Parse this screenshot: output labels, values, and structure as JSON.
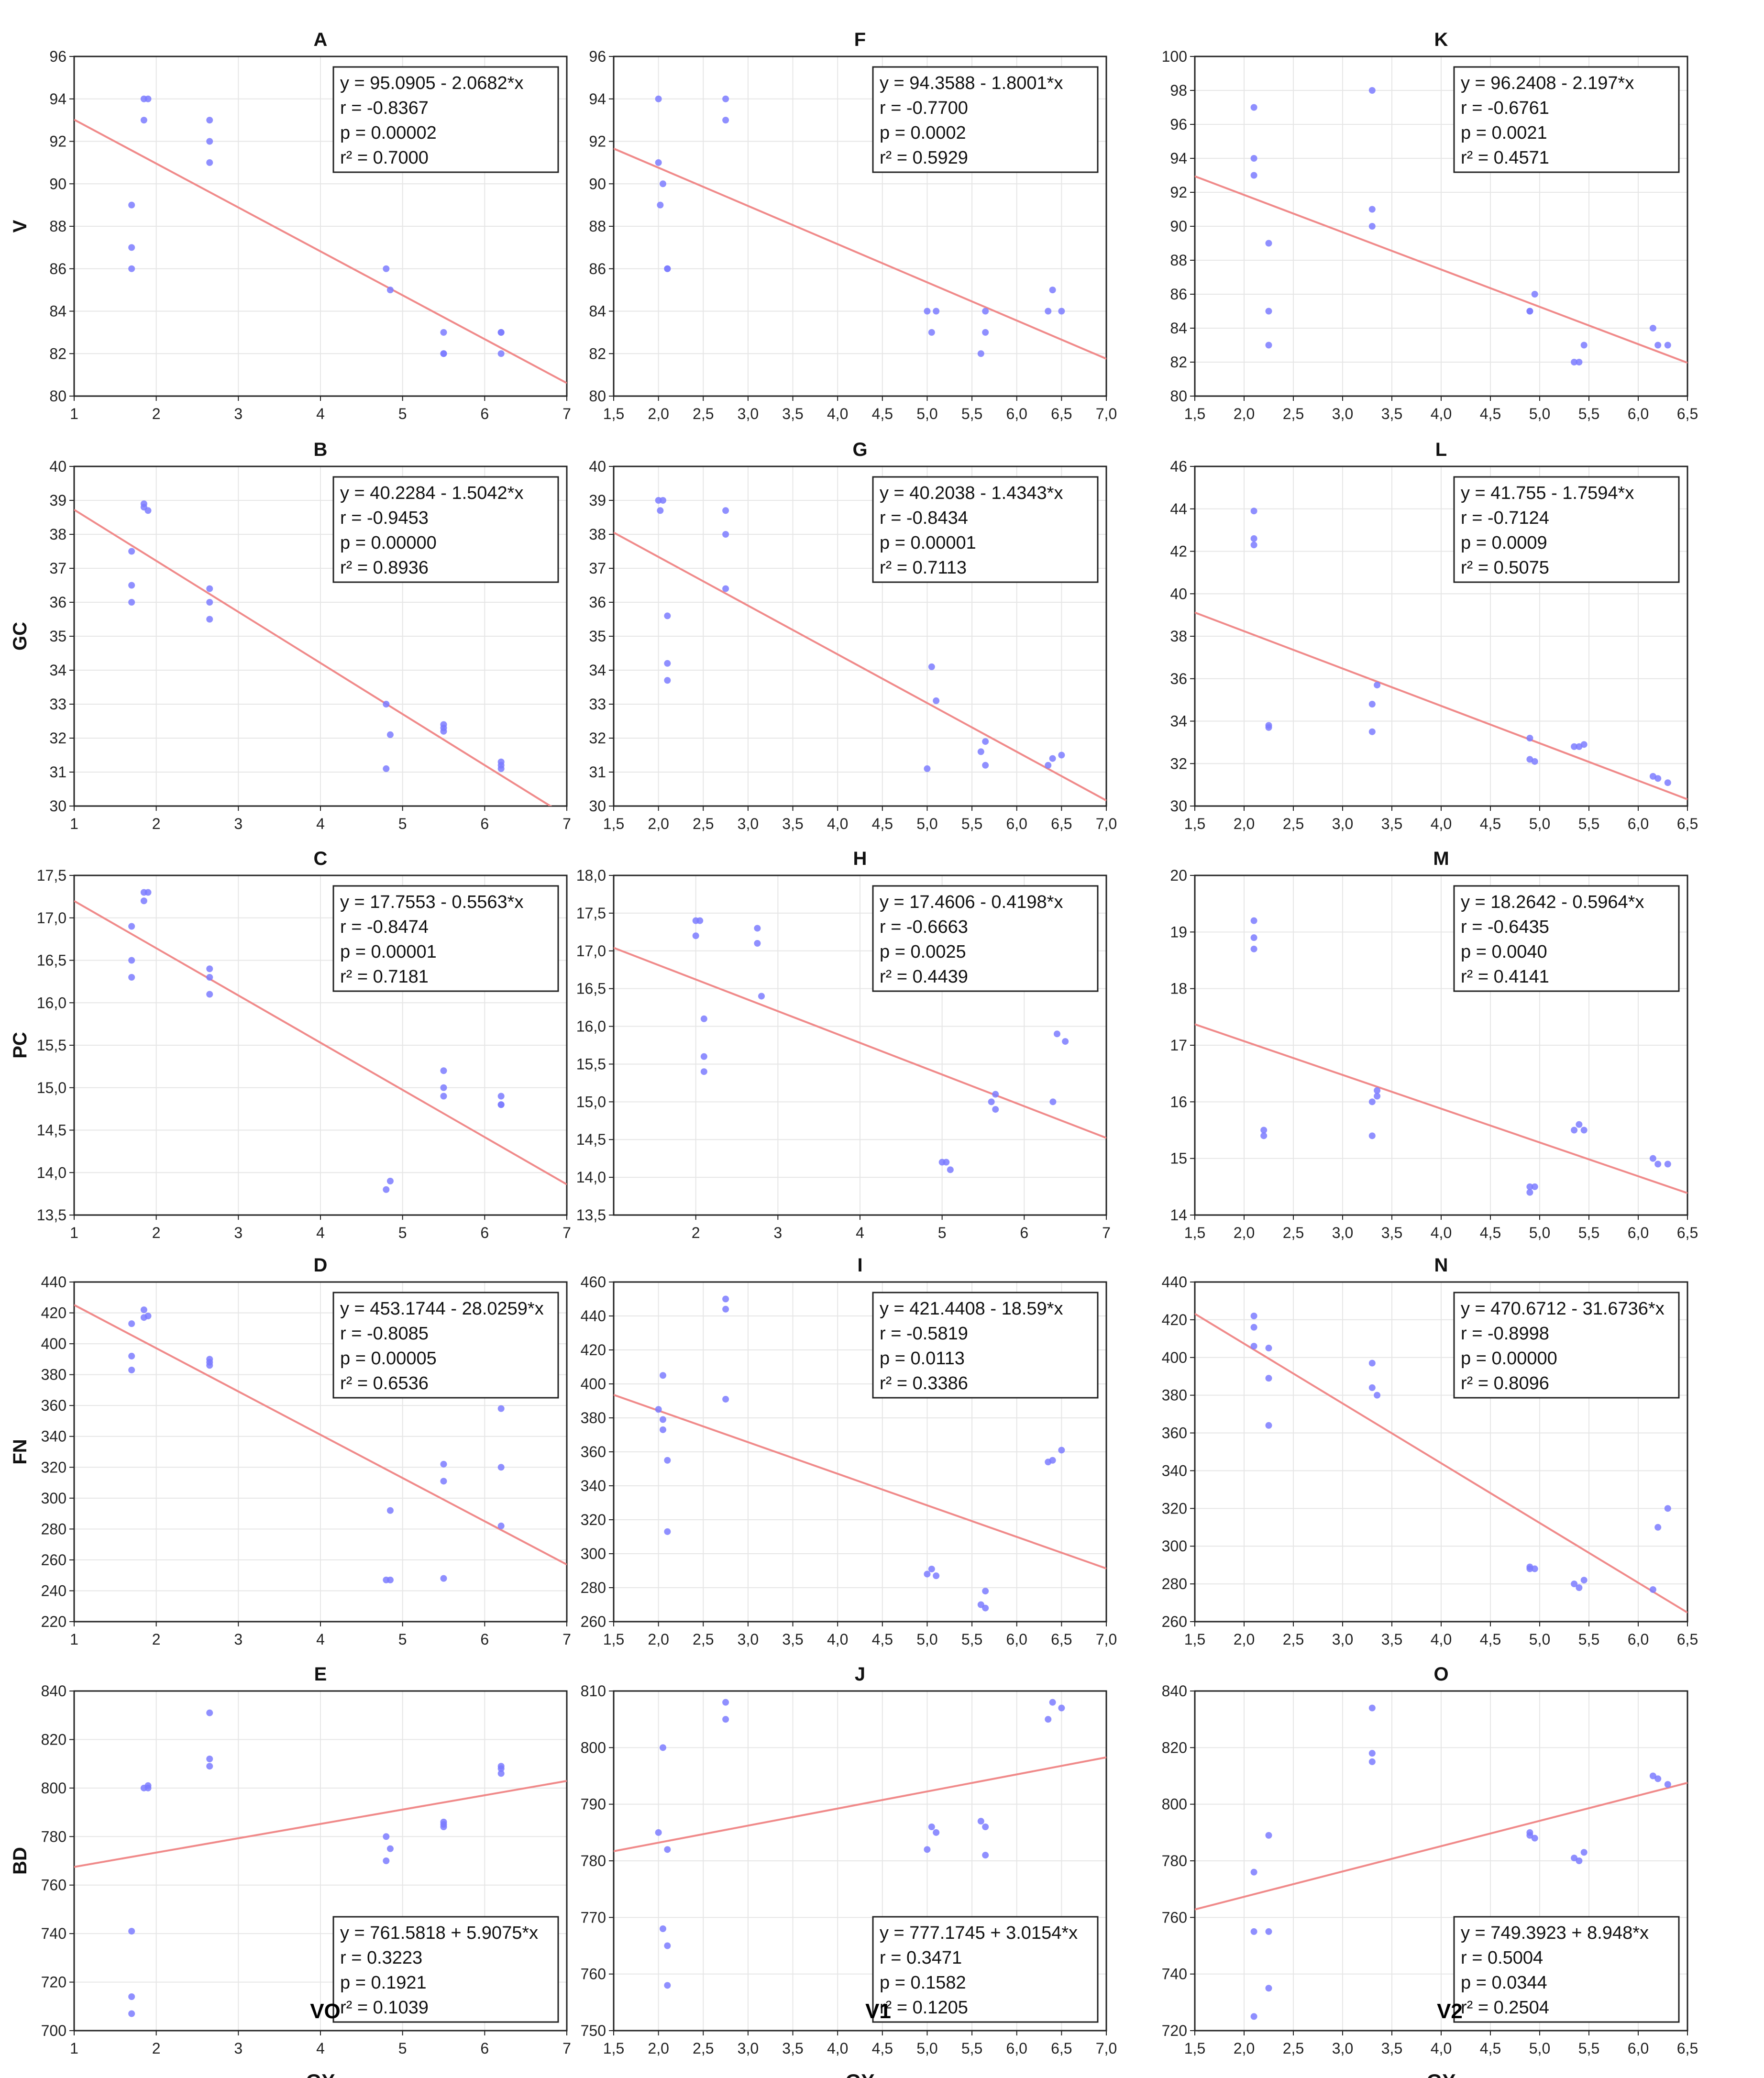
{
  "figure": {
    "column_xlabels": [
      "GY",
      "GY",
      "GY"
    ],
    "column_group_labels": [
      "VO",
      "V1",
      "V2"
    ],
    "row_ylabels": [
      "V",
      "GC",
      "PC",
      "FN",
      "BD"
    ]
  },
  "colors": {
    "points": "#7b7bff",
    "line": "#f08a8a",
    "grid": "#e6e6e6",
    "frame": "#222222"
  },
  "chart_data": [
    {
      "id": "A",
      "type": "scatter",
      "title": "A",
      "ylabel": "V",
      "xlabel": "GY",
      "xlim": [
        1,
        7
      ],
      "ylim": [
        80,
        96
      ],
      "xticks": [
        "1",
        "2",
        "3",
        "4",
        "5",
        "6",
        "7"
      ],
      "yticks": [
        "80",
        "82",
        "84",
        "86",
        "88",
        "90",
        "92",
        "94",
        "96"
      ],
      "x": [
        1.7,
        1.7,
        1.7,
        1.85,
        1.85,
        1.9,
        2.65,
        2.65,
        2.65,
        4.8,
        4.85,
        5.5,
        5.5,
        5.5,
        6.2,
        6.2,
        6.2
      ],
      "y": [
        89,
        87,
        86,
        94,
        93,
        94,
        93,
        92,
        91,
        86,
        85,
        83,
        82,
        82,
        83,
        82,
        83
      ],
      "fit": {
        "intercept": 95.0905,
        "slope": -2.0682
      },
      "stats": [
        "y = 95.0905 - 2.0682*x",
        "r = -0.8367",
        "p = 0.00002",
        "r² = 0.7000"
      ],
      "stats_pos": "top-right"
    },
    {
      "id": "F",
      "type": "scatter",
      "title": "F",
      "ylabel": "",
      "xlabel": "GY",
      "xlim": [
        1.5,
        7.0
      ],
      "ylim": [
        80,
        96
      ],
      "xticks": [
        "1,5",
        "2,0",
        "2,5",
        "3,0",
        "3,5",
        "4,0",
        "4,5",
        "5,0",
        "5,5",
        "6,0",
        "6,5",
        "7,0"
      ],
      "yticks": [
        "80",
        "82",
        "84",
        "86",
        "88",
        "90",
        "92",
        "94",
        "96"
      ],
      "x": [
        2.0,
        2.0,
        2.02,
        2.05,
        2.1,
        2.1,
        2.75,
        2.75,
        5.0,
        5.05,
        5.1,
        5.6,
        5.65,
        5.65,
        6.35,
        6.4,
        6.5
      ],
      "y": [
        94,
        91,
        89,
        90,
        86,
        86,
        94,
        93,
        84,
        83,
        84,
        82,
        84,
        83,
        84,
        85,
        84
      ],
      "fit": {
        "intercept": 94.3588,
        "slope": -1.8001
      },
      "stats": [
        "y = 94.3588 - 1.8001*x",
        "r = -0.7700",
        "p = 0.0002",
        "r² = 0.5929"
      ],
      "stats_pos": "top-right"
    },
    {
      "id": "K",
      "type": "scatter",
      "title": "K",
      "ylabel": "",
      "xlabel": "GY",
      "xlim": [
        1.5,
        6.5
      ],
      "ylim": [
        80,
        100
      ],
      "xticks": [
        "1,5",
        "2,0",
        "2,5",
        "3,0",
        "3,5",
        "4,0",
        "4,5",
        "5,0",
        "5,5",
        "6,0",
        "6,5"
      ],
      "yticks": [
        "80",
        "82",
        "84",
        "86",
        "88",
        "90",
        "92",
        "94",
        "96",
        "98",
        "100"
      ],
      "x": [
        2.1,
        2.1,
        2.1,
        2.25,
        2.25,
        2.25,
        3.3,
        3.3,
        3.3,
        4.9,
        4.9,
        4.95,
        5.35,
        5.4,
        5.45,
        6.15,
        6.2,
        6.3
      ],
      "y": [
        97,
        94,
        93,
        89,
        85,
        83,
        98,
        91,
        90,
        85,
        85,
        86,
        82,
        82,
        83,
        84,
        83,
        83
      ],
      "fit": {
        "intercept": 96.2408,
        "slope": -2.197
      },
      "stats": [
        "y = 96.2408 - 2.197*x",
        "r = -0.6761",
        "p = 0.0021",
        "r² = 0.4571"
      ],
      "stats_pos": "top-right"
    },
    {
      "id": "B",
      "type": "scatter",
      "title": "B",
      "ylabel": "GC",
      "xlabel": "GY",
      "xlim": [
        1,
        7
      ],
      "ylim": [
        30,
        40
      ],
      "xticks": [
        "1",
        "2",
        "3",
        "4",
        "5",
        "6",
        "7"
      ],
      "yticks": [
        "30",
        "31",
        "32",
        "33",
        "34",
        "35",
        "36",
        "37",
        "38",
        "39",
        "40"
      ],
      "x": [
        1.7,
        1.7,
        1.7,
        1.85,
        1.85,
        1.9,
        2.65,
        2.65,
        2.65,
        4.8,
        4.85,
        4.8,
        5.5,
        5.5,
        5.5,
        6.2,
        6.2,
        6.2
      ],
      "y": [
        37.5,
        36.5,
        36.0,
        38.9,
        38.8,
        38.7,
        36.4,
        36.0,
        35.5,
        33.0,
        32.1,
        31.1,
        32.4,
        32.3,
        32.2,
        31.3,
        31.2,
        31.1
      ],
      "fit": {
        "intercept": 40.2284,
        "slope": -1.5042
      },
      "stats": [
        "y = 40.2284 - 1.5042*x",
        "r = -0.9453",
        "p = 0.00000",
        "r² = 0.8936"
      ],
      "stats_pos": "top-right"
    },
    {
      "id": "G",
      "type": "scatter",
      "title": "G",
      "ylabel": "",
      "xlabel": "GY",
      "xlim": [
        1.5,
        7.0
      ],
      "ylim": [
        30,
        40
      ],
      "xticks": [
        "1,5",
        "2,0",
        "2,5",
        "3,0",
        "3,5",
        "4,0",
        "4,5",
        "5,0",
        "5,5",
        "6,0",
        "6,5",
        "7,0"
      ],
      "yticks": [
        "30",
        "31",
        "32",
        "33",
        "34",
        "35",
        "36",
        "37",
        "38",
        "39",
        "40"
      ],
      "x": [
        2.0,
        2.05,
        2.02,
        2.1,
        2.1,
        2.1,
        2.75,
        2.75,
        2.75,
        5.0,
        5.05,
        5.1,
        5.6,
        5.65,
        5.65,
        6.35,
        6.4,
        6.5
      ],
      "y": [
        39.0,
        39.0,
        38.7,
        35.6,
        34.2,
        33.7,
        38.7,
        38.0,
        36.4,
        31.1,
        34.1,
        33.1,
        31.6,
        31.9,
        31.2,
        31.2,
        31.4,
        31.5
      ],
      "fit": {
        "intercept": 40.2038,
        "slope": -1.4343
      },
      "stats": [
        "y = 40.2038 - 1.4343*x",
        "r = -0.8434",
        "p = 0.00001",
        "r² = 0.7113"
      ],
      "stats_pos": "top-right"
    },
    {
      "id": "L",
      "type": "scatter",
      "title": "L",
      "ylabel": "",
      "xlabel": "GY",
      "xlim": [
        1.5,
        6.5
      ],
      "ylim": [
        30,
        46
      ],
      "xticks": [
        "1,5",
        "2,0",
        "2,5",
        "3,0",
        "3,5",
        "4,0",
        "4,5",
        "5,0",
        "5,5",
        "6,0",
        "6,5"
      ],
      "yticks": [
        "30",
        "32",
        "34",
        "36",
        "38",
        "40",
        "42",
        "44",
        "46"
      ],
      "x": [
        2.1,
        2.1,
        2.1,
        2.25,
        2.25,
        3.3,
        3.3,
        3.35,
        4.9,
        4.9,
        4.95,
        5.35,
        5.4,
        5.45,
        6.15,
        6.2,
        6.3
      ],
      "y": [
        43.9,
        42.6,
        42.3,
        33.8,
        33.7,
        34.8,
        33.5,
        35.7,
        33.2,
        32.2,
        32.1,
        32.8,
        32.8,
        32.9,
        31.4,
        31.3,
        31.1
      ],
      "fit": {
        "intercept": 41.755,
        "slope": -1.7594
      },
      "stats": [
        "y = 41.755 - 1.7594*x",
        "r = -0.7124",
        "p = 0.0009",
        "r² = 0.5075"
      ],
      "stats_pos": "top-right"
    },
    {
      "id": "C",
      "type": "scatter",
      "title": "C",
      "ylabel": "PC",
      "xlabel": "GY",
      "xlim": [
        1,
        7
      ],
      "ylim": [
        13.5,
        17.5
      ],
      "xticks": [
        "1",
        "2",
        "3",
        "4",
        "5",
        "6",
        "7"
      ],
      "yticks": [
        "13,5",
        "14,0",
        "14,5",
        "15,0",
        "15,5",
        "16,0",
        "16,5",
        "17,0",
        "17,5"
      ],
      "x": [
        1.7,
        1.7,
        1.7,
        1.85,
        1.85,
        1.9,
        2.65,
        2.65,
        2.65,
        4.8,
        4.85,
        5.5,
        5.5,
        5.5,
        6.2,
        6.2,
        6.2
      ],
      "y": [
        16.9,
        16.5,
        16.3,
        17.3,
        17.2,
        17.3,
        16.4,
        16.3,
        16.1,
        13.8,
        13.9,
        15.2,
        15.0,
        14.9,
        14.9,
        14.8,
        14.8
      ],
      "fit": {
        "intercept": 17.7553,
        "slope": -0.5563
      },
      "stats": [
        "y = 17.7553 - 0.5563*x",
        "r = -0.8474",
        "p = 0.00001",
        "r² = 0.7181"
      ],
      "stats_pos": "top-right"
    },
    {
      "id": "H",
      "type": "scatter",
      "title": "H",
      "ylabel": "",
      "xlabel": "GY",
      "xlim": [
        1,
        7
      ],
      "ylim": [
        13.5,
        18.0
      ],
      "xticks": [
        "2",
        "3",
        "4",
        "5",
        "6",
        "7"
      ],
      "yticks": [
        "13,5",
        "14,0",
        "14,5",
        "15,0",
        "15,5",
        "16,0",
        "16,5",
        "17,0",
        "17,5",
        "18,0"
      ],
      "x": [
        2.0,
        2.05,
        2.0,
        2.1,
        2.1,
        2.1,
        2.75,
        2.75,
        2.8,
        5.0,
        5.05,
        5.1,
        5.6,
        5.65,
        5.65,
        6.35,
        6.4,
        6.5
      ],
      "y": [
        17.4,
        17.4,
        17.2,
        16.1,
        15.6,
        15.4,
        17.3,
        17.1,
        16.4,
        14.2,
        14.2,
        14.1,
        15.0,
        15.1,
        14.9,
        15.0,
        15.9,
        15.8
      ],
      "fit": {
        "intercept": 17.4606,
        "slope": -0.4198
      },
      "stats": [
        "y = 17.4606 - 0.4198*x",
        "r = -0.6663",
        "p = 0.0025",
        "r² = 0.4439"
      ],
      "stats_pos": "top-right"
    },
    {
      "id": "M",
      "type": "scatter",
      "title": "M",
      "ylabel": "",
      "xlabel": "GY",
      "xlim": [
        1.5,
        6.5
      ],
      "ylim": [
        14,
        20
      ],
      "xticks": [
        "1,5",
        "2,0",
        "2,5",
        "3,0",
        "3,5",
        "4,0",
        "4,5",
        "5,0",
        "5,5",
        "6,0",
        "6,5"
      ],
      "yticks": [
        "14",
        "15",
        "16",
        "17",
        "18",
        "19",
        "20"
      ],
      "x": [
        2.1,
        2.1,
        2.1,
        2.2,
        2.2,
        3.3,
        3.3,
        3.35,
        3.35,
        4.9,
        4.9,
        4.95,
        5.35,
        5.4,
        5.45,
        6.15,
        6.2,
        6.3
      ],
      "y": [
        19.2,
        18.9,
        18.7,
        15.5,
        15.4,
        16.0,
        15.4,
        16.2,
        16.1,
        14.4,
        14.5,
        14.5,
        15.5,
        15.6,
        15.5,
        15.0,
        14.9,
        14.9
      ],
      "fit": {
        "intercept": 18.2642,
        "slope": -0.5964
      },
      "stats": [
        "y = 18.2642 - 0.5964*x",
        "r = -0.6435",
        "p = 0.0040",
        "r² = 0.4141"
      ],
      "stats_pos": "top-right"
    },
    {
      "id": "D",
      "type": "scatter",
      "title": "D",
      "ylabel": "FN",
      "xlabel": "GY",
      "xlim": [
        1,
        7
      ],
      "ylim": [
        220,
        440
      ],
      "xticks": [
        "1",
        "2",
        "3",
        "4",
        "5",
        "6",
        "7"
      ],
      "yticks": [
        "220",
        "240",
        "260",
        "280",
        "300",
        "320",
        "340",
        "360",
        "380",
        "400",
        "420",
        "440"
      ],
      "x": [
        1.7,
        1.7,
        1.7,
        1.85,
        1.9,
        1.85,
        2.65,
        2.65,
        2.65,
        4.8,
        4.85,
        4.85,
        5.5,
        5.5,
        5.5,
        6.2,
        6.2,
        6.2
      ],
      "y": [
        413,
        392,
        383,
        422,
        418,
        417,
        390,
        388,
        386,
        247,
        247,
        292,
        322,
        311,
        248,
        358,
        320,
        282
      ],
      "fit": {
        "intercept": 453.1744,
        "slope": -28.0259
      },
      "stats": [
        "y = 453.1744 - 28.0259*x",
        "r = -0.8085",
        "p = 0.00005",
        "r² = 0.6536"
      ],
      "stats_pos": "top-right"
    },
    {
      "id": "I",
      "type": "scatter",
      "title": "I",
      "ylabel": "",
      "xlabel": "GY",
      "xlim": [
        1.5,
        7.0
      ],
      "ylim": [
        260,
        460
      ],
      "xticks": [
        "1,5",
        "2,0",
        "2,5",
        "3,0",
        "3,5",
        "4,0",
        "4,5",
        "5,0",
        "5,5",
        "6,0",
        "6,5",
        "7,0"
      ],
      "yticks": [
        "260",
        "280",
        "300",
        "320",
        "340",
        "360",
        "380",
        "400",
        "420",
        "440",
        "460"
      ],
      "x": [
        2.05,
        2.0,
        2.05,
        2.05,
        2.1,
        2.1,
        2.75,
        2.75,
        2.75,
        5.0,
        5.05,
        5.1,
        5.6,
        5.65,
        5.65,
        6.35,
        6.4,
        6.5
      ],
      "y": [
        405,
        385,
        373,
        379,
        355,
        313,
        450,
        444,
        391,
        288,
        291,
        287,
        270,
        278,
        268,
        354,
        355,
        361
      ],
      "fit": {
        "intercept": 421.4408,
        "slope": -18.59
      },
      "stats": [
        "y = 421.4408 - 18.59*x",
        "r = -0.5819",
        "p = 0.0113",
        "r² = 0.3386"
      ],
      "stats_pos": "top-right"
    },
    {
      "id": "N",
      "type": "scatter",
      "title": "N",
      "ylabel": "",
      "xlabel": "GY",
      "xlim": [
        1.5,
        6.5
      ],
      "ylim": [
        260,
        440
      ],
      "xticks": [
        "1,5",
        "2,0",
        "2,5",
        "3,0",
        "3,5",
        "4,0",
        "4,5",
        "5,0",
        "5,5",
        "6,0",
        "6,5"
      ],
      "yticks": [
        "260",
        "280",
        "300",
        "320",
        "340",
        "360",
        "380",
        "400",
        "420",
        "440"
      ],
      "x": [
        2.1,
        2.1,
        2.1,
        2.25,
        2.25,
        2.25,
        3.3,
        3.3,
        3.35,
        4.9,
        4.9,
        4.95,
        5.35,
        5.4,
        5.45,
        6.15,
        6.2,
        6.3
      ],
      "y": [
        422,
        416,
        406,
        405,
        389,
        364,
        397,
        384,
        380,
        289,
        288,
        288,
        280,
        278,
        282,
        277,
        310,
        320
      ],
      "fit": {
        "intercept": 470.6712,
        "slope": -31.6736
      },
      "stats": [
        "y = 470.6712 - 31.6736*x",
        "r = -0.8998",
        "p = 0.00000",
        "r² = 0.8096"
      ],
      "stats_pos": "top-right"
    },
    {
      "id": "E",
      "type": "scatter",
      "title": "E",
      "ylabel": "BD",
      "xlabel": "GY",
      "xlim": [
        1,
        7
      ],
      "ylim": [
        700,
        840
      ],
      "xticks": [
        "1",
        "2",
        "3",
        "4",
        "5",
        "6",
        "7"
      ],
      "yticks": [
        "700",
        "720",
        "740",
        "760",
        "780",
        "800",
        "820",
        "840"
      ],
      "x": [
        1.7,
        1.7,
        1.7,
        1.85,
        1.9,
        1.9,
        2.65,
        2.65,
        2.65,
        4.8,
        4.85,
        4.8,
        5.5,
        5.5,
        5.5,
        6.2,
        6.2,
        6.2
      ],
      "y": [
        741,
        714,
        707,
        800,
        801,
        800,
        831,
        812,
        809,
        780,
        775,
        770,
        786,
        784,
        785,
        809,
        808,
        806
      ],
      "fit": {
        "intercept": 761.5818,
        "slope": 5.9075
      },
      "stats": [
        "y = 761.5818 + 5.9075*x",
        "r = 0.3223",
        "p = 0.1921",
        "r² = 0.1039"
      ],
      "stats_pos": "bottom-right"
    },
    {
      "id": "J",
      "type": "scatter",
      "title": "J",
      "ylabel": "",
      "xlabel": "GY",
      "xlim": [
        1.5,
        7.0
      ],
      "ylim": [
        750,
        810
      ],
      "xticks": [
        "1,5",
        "2,0",
        "2,5",
        "3,0",
        "3,5",
        "4,0",
        "4,5",
        "5,0",
        "5,5",
        "6,0",
        "6,5",
        "7,0"
      ],
      "yticks": [
        "750",
        "760",
        "770",
        "780",
        "790",
        "800",
        "810"
      ],
      "x": [
        2.05,
        2.0,
        2.05,
        2.1,
        2.1,
        2.1,
        2.75,
        2.75,
        5.0,
        5.05,
        5.1,
        5.6,
        5.65,
        5.65,
        6.35,
        6.4,
        6.5
      ],
      "y": [
        800,
        785,
        768,
        782,
        765,
        758,
        808,
        805,
        782,
        786,
        785,
        787,
        786,
        781,
        805,
        808,
        807
      ],
      "fit": {
        "intercept": 777.1745,
        "slope": 3.0154
      },
      "stats": [
        "y = 777.1745 + 3.0154*x",
        "r = 0.3471",
        "p = 0.1582",
        "r² = 0.1205"
      ],
      "stats_pos": "bottom-right"
    },
    {
      "id": "O",
      "type": "scatter",
      "title": "O",
      "ylabel": "",
      "xlabel": "GY",
      "xlim": [
        1.5,
        6.5
      ],
      "ylim": [
        720,
        840
      ],
      "xticks": [
        "1,5",
        "2,0",
        "2,5",
        "3,0",
        "3,5",
        "4,0",
        "4,5",
        "5,0",
        "5,5",
        "6,0",
        "6,5"
      ],
      "yticks": [
        "720",
        "740",
        "760",
        "780",
        "800",
        "820",
        "840"
      ],
      "x": [
        2.1,
        2.1,
        2.1,
        2.25,
        2.25,
        2.25,
        3.3,
        3.3,
        3.3,
        4.9,
        4.9,
        4.95,
        5.35,
        5.4,
        5.45,
        6.15,
        6.2,
        6.3
      ],
      "y": [
        776,
        755,
        725,
        789,
        755,
        735,
        834,
        818,
        815,
        790,
        789,
        788,
        781,
        780,
        783,
        810,
        809,
        807
      ],
      "fit": {
        "intercept": 749.3923,
        "slope": 8.948
      },
      "stats": [
        "y = 749.3923 + 8.948*x",
        "r = 0.5004",
        "p = 0.0344",
        "r² = 0.2504"
      ],
      "stats_pos": "bottom-right"
    }
  ]
}
